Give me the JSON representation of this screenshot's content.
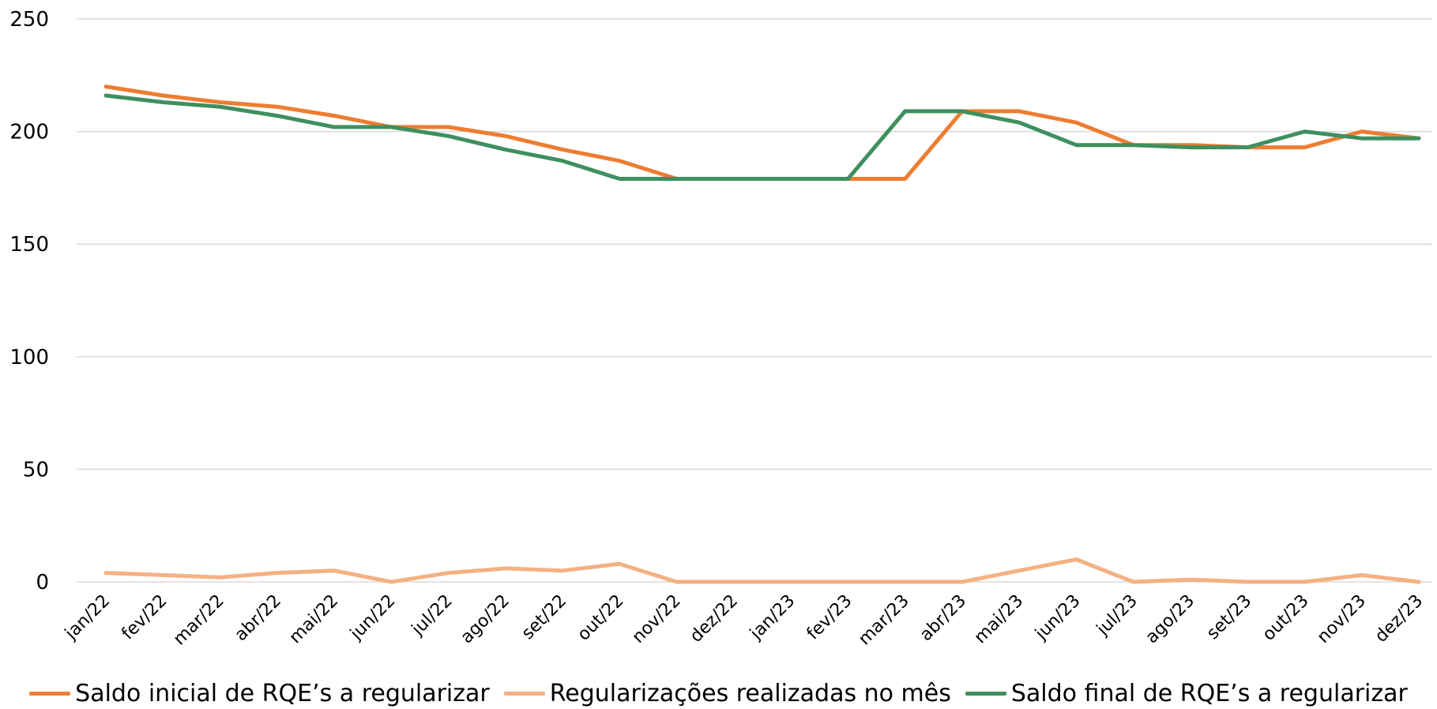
{
  "chart_data": {
    "type": "line",
    "categories": [
      "jan/22",
      "fev/22",
      "mar/22",
      "abr/22",
      "mai/22",
      "jun/22",
      "jul/22",
      "ago/22",
      "set/22",
      "out/22",
      "nov/22",
      "dez/22",
      "jan/23",
      "fev/23",
      "mar/23",
      "abr/23",
      "mai/23",
      "jun/23",
      "jul/23",
      "ago/23",
      "set/23",
      "out/23",
      "nov/23",
      "dez/23"
    ],
    "ylim": [
      0,
      250
    ],
    "yticks": [
      0,
      50,
      100,
      150,
      200,
      250
    ],
    "grid": true,
    "legend_position": "bottom",
    "series": [
      {
        "name": "Saldo inicial de RQE’s a regularizar",
        "color": "#ED7D31",
        "values": [
          220,
          216,
          213,
          211,
          207,
          202,
          202,
          198,
          192,
          187,
          179,
          179,
          179,
          179,
          179,
          209,
          209,
          204,
          194,
          194,
          193,
          193,
          200,
          197
        ]
      },
      {
        "name": "Regularizações realizadas no mês",
        "color": "#F4B183",
        "values": [
          4,
          3,
          2,
          4,
          5,
          0,
          4,
          6,
          5,
          8,
          0,
          0,
          0,
          0,
          0,
          0,
          5,
          10,
          0,
          1,
          0,
          0,
          3,
          0
        ]
      },
      {
        "name": "Saldo final de RQE’s a regularizar",
        "color": "#3F8F5F",
        "values": [
          216,
          213,
          211,
          207,
          202,
          202,
          198,
          192,
          187,
          179,
          179,
          179,
          179,
          179,
          209,
          209,
          204,
          194,
          194,
          193,
          193,
          200,
          197,
          197
        ]
      }
    ]
  }
}
